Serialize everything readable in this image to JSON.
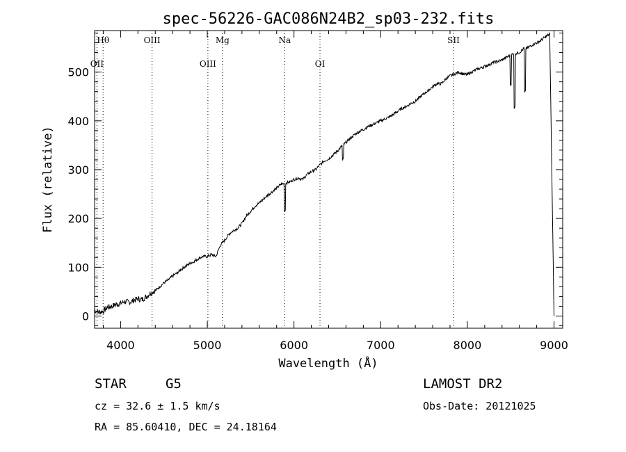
{
  "chart_data": {
    "type": "line",
    "title": "spec-56226-GAC086N24B2_sp03-232.fits",
    "xlabel": "Wavelength (Å)",
    "ylabel": "Flux (relative)",
    "xlim": [
      3700,
      9100
    ],
    "ylim": [
      -25,
      585
    ],
    "xticks": [
      4000,
      5000,
      6000,
      7000,
      8000,
      9000
    ],
    "yticks": [
      0,
      100,
      200,
      300,
      400,
      500
    ],
    "grid": false,
    "series": [
      {
        "color": "#000000",
        "x": [
          3700,
          3750,
          3800,
          3850,
          3900,
          3950,
          4000,
          4050,
          4100,
          4150,
          4200,
          4250,
          4300,
          4350,
          4400,
          4450,
          4500,
          4550,
          4600,
          4650,
          4700,
          4750,
          4800,
          4850,
          4900,
          4950,
          5000,
          5050,
          5100,
          5150,
          5200,
          5250,
          5300,
          5350,
          5400,
          5450,
          5500,
          5550,
          5600,
          5650,
          5700,
          5750,
          5800,
          5850,
          5900,
          5950,
          6000,
          6050,
          6100,
          6150,
          6200,
          6250,
          6300,
          6350,
          6400,
          6450,
          6500,
          6550,
          6600,
          6650,
          6700,
          6750,
          6800,
          6850,
          6900,
          6950,
          7000,
          7050,
          7100,
          7150,
          7200,
          7250,
          7300,
          7350,
          7400,
          7450,
          7500,
          7550,
          7600,
          7650,
          7700,
          7750,
          7800,
          7850,
          7900,
          7950,
          8000,
          8050,
          8100,
          8150,
          8200,
          8250,
          8300,
          8350,
          8400,
          8450,
          8500,
          8550,
          8600,
          8650,
          8700,
          8750,
          8800,
          8850,
          8900,
          8950,
          9000
        ],
        "y": [
          12,
          8,
          10,
          18,
          20,
          24,
          26,
          30,
          28,
          32,
          35,
          34,
          40,
          48,
          52,
          60,
          68,
          74,
          82,
          88,
          96,
          102,
          108,
          112,
          118,
          122,
          122,
          126,
          122,
          145,
          155,
          168,
          175,
          180,
          190,
          205,
          215,
          225,
          232,
          240,
          248,
          255,
          262,
          270,
          272,
          275,
          280,
          283,
          280,
          290,
          296,
          300,
          310,
          318,
          322,
          330,
          338,
          348,
          356,
          364,
          372,
          378,
          382,
          388,
          392,
          396,
          400,
          404,
          408,
          414,
          420,
          426,
          430,
          436,
          440,
          448,
          456,
          462,
          470,
          476,
          476,
          486,
          492,
          496,
          500,
          496,
          495,
          500,
          505,
          508,
          512,
          515,
          520,
          522,
          525,
          530,
          535,
          538,
          540,
          548,
          550,
          556,
          560,
          565,
          572,
          578,
          0
        ]
      }
    ],
    "annotations": [
      {
        "label": "OII",
        "x": 3727,
        "row": "lower"
      },
      {
        "label": "Hθ",
        "x": 3798,
        "row": "upper"
      },
      {
        "label": "OIII",
        "x": 4363,
        "row": "upper"
      },
      {
        "label": "OIII",
        "x": 5007,
        "row": "lower"
      },
      {
        "label": "Mg",
        "x": 5175,
        "row": "upper"
      },
      {
        "label": "Na",
        "x": 5893,
        "row": "upper"
      },
      {
        "label": "OI",
        "x": 6300,
        "row": "lower"
      },
      {
        "label": "SII",
        "x": 7840,
        "row": "upper"
      }
    ]
  },
  "footer": {
    "object_type": "STAR",
    "subclass": "G5",
    "cz": "cz = 32.6 ± 1.5 km/s",
    "coords": "RA =  85.60410, DEC =  24.18164",
    "survey": "LAMOST DR2",
    "obs_date": "Obs-Date: 20121025"
  }
}
